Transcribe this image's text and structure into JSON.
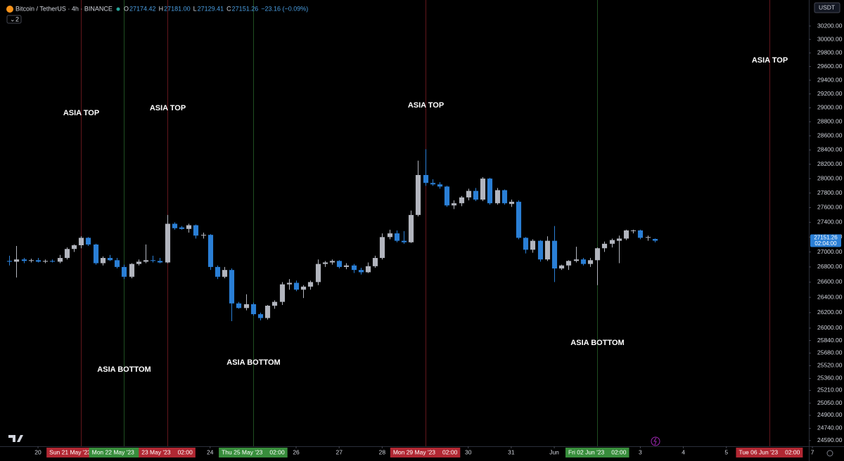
{
  "chart_data": {
    "type": "candlestick",
    "header": {
      "symbol": "Bitcoin / TetherUS · 4h · BINANCE",
      "ohlc": [
        {
          "key": "O",
          "value": "27174.42"
        },
        {
          "key": "H",
          "value": "27181.00"
        },
        {
          "key": "L",
          "value": "27129.41"
        },
        {
          "key": "C",
          "value": "27151.26"
        }
      ],
      "change": "−23.16 (−0.09%)",
      "indicator_count": "2"
    },
    "currency": "USDT",
    "last_price_label": "27151.26",
    "countdown": "02:04:00",
    "up_color": "#b2b5be",
    "down_color": "#2a7fd6",
    "log_scale": true,
    "grid": false,
    "open": [
      26880,
      26870,
      26900,
      26880,
      26890,
      26870,
      26880,
      26870,
      26920,
      27040,
      27090,
      27190,
      27100,
      26850,
      26920,
      26890,
      26800,
      26670,
      26840,
      26870,
      26890,
      26880,
      26860,
      27380,
      27330,
      27310,
      27360,
      27220,
      27230,
      26800,
      26670,
      26760,
      26320,
      26260,
      26310,
      26180,
      26130,
      26290,
      26340,
      26570,
      26590,
      26500,
      26540,
      26600,
      26840,
      26860,
      26880,
      26800,
      26820,
      26760,
      26730,
      26810,
      26920,
      27200,
      27250,
      27150,
      27130,
      27500,
      28050,
      27940,
      27920,
      27890,
      27630,
      27660,
      27740,
      27830,
      27710,
      28000,
      27660,
      27840,
      27650,
      27680,
      27190,
      27030,
      27150,
      26900,
      27150,
      26780,
      26820,
      26880,
      26900,
      26840,
      26890,
      27050,
      27110,
      27150,
      27180,
      27280,
      27290,
      27190,
      27174.42
    ],
    "high": [
      26950,
      27080,
      26920,
      26910,
      26920,
      26900,
      26900,
      26960,
      27060,
      27100,
      27210,
      27200,
      27110,
      26940,
      26960,
      26920,
      26830,
      26850,
      26900,
      27100,
      26950,
      26920,
      27500,
      27400,
      27350,
      27380,
      27370,
      27260,
      27240,
      26820,
      26800,
      26780,
      26340,
      26440,
      26330,
      26200,
      26300,
      26360,
      26600,
      26640,
      26620,
      26560,
      26620,
      26900,
      26880,
      26900,
      26890,
      26850,
      26840,
      26790,
      26860,
      26950,
      27250,
      27300,
      27290,
      27280,
      27560,
      28250,
      28410,
      27990,
      27950,
      27900,
      27700,
      27760,
      27860,
      27870,
      28020,
      28010,
      27870,
      27850,
      27710,
      27700,
      27200,
      27170,
      27160,
      27210,
      27350,
      26830,
      26890,
      27070,
      26920,
      26920,
      27060,
      27140,
      27180,
      27220,
      27300,
      27300,
      27300,
      27220,
      27181
    ],
    "low": [
      26820,
      26660,
      26850,
      26860,
      26860,
      26850,
      26860,
      26850,
      26900,
      27000,
      27050,
      27080,
      26830,
      26820,
      26880,
      26780,
      26640,
      26650,
      26820,
      26850,
      26860,
      26850,
      26850,
      27300,
      27300,
      27260,
      27180,
      27180,
      26760,
      26640,
      26650,
      26090,
      26250,
      26230,
      26160,
      26100,
      26110,
      26250,
      26300,
      26500,
      26480,
      26390,
      26500,
      26560,
      26800,
      26830,
      26780,
      26770,
      26720,
      26700,
      26720,
      26790,
      26900,
      27170,
      27130,
      27110,
      27120,
      27480,
      27900,
      27900,
      27860,
      27610,
      27580,
      27620,
      27700,
      27690,
      27690,
      27640,
      27640,
      27640,
      27610,
      27170,
      26980,
      26990,
      26870,
      26880,
      26600,
      26760,
      26760,
      26860,
      26820,
      26800,
      26560,
      27000,
      27060,
      26850,
      27160,
      27250,
      27170,
      27150,
      27129.41
    ],
    "close": [
      26870,
      26900,
      26880,
      26890,
      26870,
      26880,
      26870,
      26920,
      27040,
      27090,
      27190,
      27100,
      26850,
      26920,
      26890,
      26800,
      26670,
      26840,
      26870,
      26890,
      26880,
      26860,
      27380,
      27320,
      27310,
      27360,
      27220,
      27230,
      26800,
      26670,
      26760,
      26320,
      26260,
      26310,
      26180,
      26130,
      26290,
      26340,
      26570,
      26590,
      26500,
      26540,
      26600,
      26840,
      26860,
      26880,
      26800,
      26820,
      26760,
      26730,
      26810,
      26920,
      27200,
      27250,
      27150,
      27130,
      27500,
      28050,
      27940,
      27920,
      27890,
      27630,
      27660,
      27740,
      27830,
      27710,
      28000,
      27660,
      27840,
      27660,
      27680,
      27190,
      27030,
      27150,
      26900,
      27150,
      26780,
      26820,
      26880,
      26900,
      26840,
      26890,
      27050,
      27110,
      27160,
      27180,
      27290,
      27290,
      27190,
      27200,
      27151.26
    ],
    "xlim": [
      -1.3,
      111.5
    ],
    "xticks": [
      {
        "value": 4,
        "label": "20"
      },
      {
        "value": 28,
        "label": "24"
      },
      {
        "value": 40,
        "label": "26"
      },
      {
        "value": 46,
        "label": "27"
      },
      {
        "value": 52,
        "label": "28"
      },
      {
        "value": 64,
        "label": "30"
      },
      {
        "value": 70,
        "label": "31"
      },
      {
        "value": 76,
        "label": "Jun"
      },
      {
        "value": 88,
        "label": "3"
      },
      {
        "value": 94,
        "label": "4"
      },
      {
        "value": 100,
        "label": "5"
      },
      {
        "value": 112,
        "label": "7"
      }
    ],
    "ylim": [
      24521,
      30592
    ],
    "yticks": [
      {
        "value": 30200,
        "label": "30200.00"
      },
      {
        "value": 30000,
        "label": "30000.00"
      },
      {
        "value": 29800,
        "label": "29800.00"
      },
      {
        "value": 29600,
        "label": "29600.00"
      },
      {
        "value": 29400,
        "label": "29400.00"
      },
      {
        "value": 29200,
        "label": "29200.00"
      },
      {
        "value": 29000,
        "label": "29000.00"
      },
      {
        "value": 28800,
        "label": "28800.00"
      },
      {
        "value": 28600,
        "label": "28600.00"
      },
      {
        "value": 28400,
        "label": "28400.00"
      },
      {
        "value": 28200,
        "label": "28200.00"
      },
      {
        "value": 28000,
        "label": "28000.00"
      },
      {
        "value": 27800,
        "label": "27800.00"
      },
      {
        "value": 27600,
        "label": "27600.00"
      },
      {
        "value": 27400,
        "label": "27400.00"
      },
      {
        "value": 27200,
        "label": "27200.00"
      },
      {
        "value": 27000,
        "label": "27000.00"
      },
      {
        "value": 26800,
        "label": "26800.00"
      },
      {
        "value": 26600,
        "label": "26600.00"
      },
      {
        "value": 26400,
        "label": "26400.00"
      },
      {
        "value": 26200,
        "label": "26200.00"
      },
      {
        "value": 26000,
        "label": "26000.00"
      },
      {
        "value": 25840,
        "label": "25840.00"
      },
      {
        "value": 25680,
        "label": "25680.00"
      },
      {
        "value": 25520,
        "label": "25520.00"
      },
      {
        "value": 25360,
        "label": "25360.00"
      },
      {
        "value": 25210,
        "label": "25210.00"
      },
      {
        "value": 25050,
        "label": "25050.00"
      },
      {
        "value": 24900,
        "label": "24900.00"
      },
      {
        "value": 24740,
        "label": "24740.00"
      },
      {
        "value": 24590,
        "label": "24590.00"
      }
    ],
    "markers": [
      {
        "value": 10,
        "color": "#b22833",
        "date": "Sun 21 May '23",
        "time": "02:00",
        "note": "ASIA TOP"
      },
      {
        "value": 16,
        "color": "#388e3c",
        "date": "Mon 22 May '23",
        "time": "02:00",
        "note": "ASIA BOTTOM"
      },
      {
        "value": 22,
        "color": "#b22833",
        "date": "23 May '23",
        "time": "02:00",
        "note": "ASIA TOP"
      },
      {
        "value": 34,
        "color": "#388e3c",
        "date": "Thu 25 May '23",
        "time": "02:00",
        "note": "ASIA BOTTOM"
      },
      {
        "value": 58,
        "color": "#b22833",
        "date": "Mon 29 May '23",
        "time": "02:00",
        "note": "ASIA TOP"
      },
      {
        "value": 82,
        "color": "#388e3c",
        "date": "Fri 02 Jun '23",
        "time": "02:00",
        "note": "ASIA BOTTOM"
      },
      {
        "value": 106,
        "color": "#b22833",
        "date": "Tue 06 Jun '23",
        "time": "02:00",
        "note": "ASIA TOP"
      }
    ]
  }
}
